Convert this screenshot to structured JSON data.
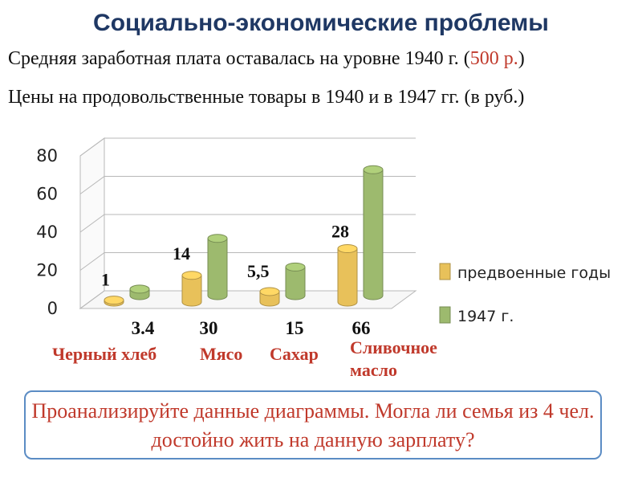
{
  "title": "Социально-экономические проблемы",
  "salary_line": {
    "prefix": "Средняя заработная плата оставалась на уровне 1940 г. (",
    "highlight": "500 р.",
    "suffix": ")"
  },
  "prices_line": "Цены на продовольственные товары в 1940 и в 1947 гг. (в руб.)",
  "chart_data": {
    "type": "bar",
    "categories": [
      "Черный хлеб",
      "Мясо",
      "Сахар",
      "Сливочное масло"
    ],
    "series": [
      {
        "name": "предвоенные годы",
        "values": [
          1,
          14,
          5.5,
          28
        ],
        "color": "#e8c15a"
      },
      {
        "name": "1947 г.",
        "values": [
          3.4,
          30,
          15,
          66
        ],
        "color": "#9dba6e"
      }
    ],
    "pre_war_labels": [
      "1",
      "14",
      "5,5",
      "28"
    ],
    "labels_1947": [
      "3.4",
      "30",
      "15",
      "66"
    ],
    "yticks": [
      "0",
      "20",
      "40",
      "60",
      "80"
    ],
    "ylim": [
      0,
      80
    ],
    "grid": true,
    "legend_position": "right"
  },
  "question": "Проанализируйте данные диаграммы. Могла ли семья из 4 чел. достойно жить на данную зарплату?",
  "colors": {
    "title": "#1f3864",
    "accent": "#c0392b",
    "border": "#5b8cc4"
  }
}
